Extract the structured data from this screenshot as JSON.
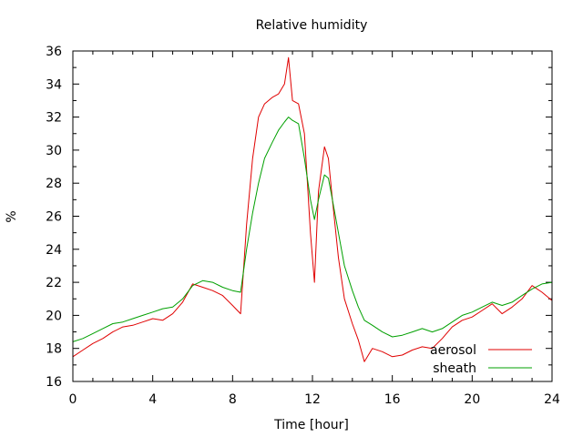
{
  "chart_data": {
    "type": "line",
    "title": "Relative humidity",
    "xlabel": "Time [hour]",
    "ylabel": "%",
    "xlim": [
      0,
      24
    ],
    "ylim": [
      16,
      36
    ],
    "xticks": [
      0,
      4,
      8,
      12,
      16,
      20,
      24
    ],
    "yticks": [
      16,
      18,
      20,
      22,
      24,
      26,
      28,
      30,
      32,
      34,
      36
    ],
    "grid": false,
    "legend_position": "bottom-right",
    "series": [
      {
        "name": "aerosol",
        "color": "#e00000",
        "x": [
          0,
          0.5,
          1,
          1.5,
          2,
          2.5,
          3,
          3.5,
          4,
          4.5,
          5,
          5.5,
          6,
          6.5,
          7,
          7.5,
          8,
          8.4,
          8.7,
          9,
          9.3,
          9.6,
          10,
          10.3,
          10.6,
          10.8,
          11,
          11.3,
          11.6,
          11.9,
          12.1,
          12.3,
          12.6,
          12.8,
          13,
          13.3,
          13.6,
          14,
          14.3,
          14.6,
          15,
          15.5,
          16,
          16.5,
          17,
          17.5,
          18,
          18.5,
          19,
          19.5,
          20,
          20.5,
          21,
          21.5,
          22,
          22.5,
          23,
          23.5,
          24
        ],
        "values": [
          17.5,
          17.9,
          18.3,
          18.6,
          19.0,
          19.3,
          19.4,
          19.6,
          19.8,
          19.7,
          20.1,
          20.8,
          21.9,
          21.7,
          21.5,
          21.2,
          20.6,
          20.1,
          25.5,
          29.5,
          32.0,
          32.8,
          33.2,
          33.4,
          34.0,
          35.6,
          33.0,
          32.8,
          31.0,
          25.0,
          22.0,
          27.5,
          30.2,
          29.5,
          27.0,
          23.5,
          21.0,
          19.5,
          18.5,
          17.2,
          18.0,
          17.8,
          17.5,
          17.6,
          17.9,
          18.1,
          18.0,
          18.6,
          19.3,
          19.7,
          19.9,
          20.3,
          20.7,
          20.1,
          20.5,
          21.0,
          21.8,
          21.4,
          20.9
        ]
      },
      {
        "name": "sheath",
        "color": "#00a000",
        "x": [
          0,
          0.5,
          1,
          1.5,
          2,
          2.5,
          3,
          3.5,
          4,
          4.5,
          5,
          5.5,
          6,
          6.5,
          7,
          7.5,
          8,
          8.4,
          8.7,
          9,
          9.3,
          9.6,
          10,
          10.3,
          10.6,
          10.8,
          11,
          11.3,
          11.6,
          11.9,
          12.1,
          12.3,
          12.6,
          12.8,
          13,
          13.3,
          13.6,
          14,
          14.3,
          14.6,
          15,
          15.5,
          16,
          16.5,
          17,
          17.5,
          18,
          18.5,
          19,
          19.5,
          20,
          20.5,
          21,
          21.5,
          22,
          22.5,
          23,
          23.5,
          24
        ],
        "values": [
          18.4,
          18.6,
          18.9,
          19.2,
          19.5,
          19.6,
          19.8,
          20.0,
          20.2,
          20.4,
          20.5,
          21.0,
          21.8,
          22.1,
          22.0,
          21.7,
          21.5,
          21.4,
          24.0,
          26.2,
          28.0,
          29.5,
          30.5,
          31.2,
          31.7,
          32.0,
          31.8,
          31.6,
          29.5,
          27.0,
          25.8,
          27.0,
          28.5,
          28.3,
          27.0,
          25.0,
          23.0,
          21.5,
          20.5,
          19.7,
          19.4,
          19.0,
          18.7,
          18.8,
          19.0,
          19.2,
          19.0,
          19.2,
          19.6,
          20.0,
          20.2,
          20.5,
          20.8,
          20.6,
          20.8,
          21.2,
          21.6,
          21.9,
          22.0
        ]
      }
    ]
  }
}
